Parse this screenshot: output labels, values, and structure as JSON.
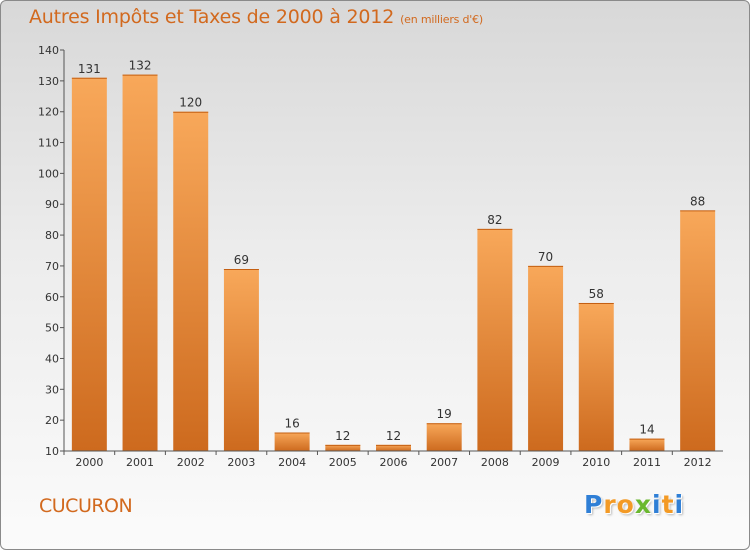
{
  "colors": {
    "accent": "#d2691e",
    "bar_top": "#f8a85a",
    "bar_bottom": "#cd6a1e",
    "axis": "#333333"
  },
  "footer": {
    "city": "CUCURON",
    "brand": "Proxiti"
  },
  "brand_letters": [
    {
      "ch": "P",
      "color": "#2f7fd6"
    },
    {
      "ch": "r",
      "color": "#f39a25"
    },
    {
      "ch": "o",
      "color": "#f39a25"
    },
    {
      "ch": "x",
      "color": "#6ab82e"
    },
    {
      "ch": "i",
      "color": "#2f7fd6"
    },
    {
      "ch": "t",
      "color": "#f39a25"
    },
    {
      "ch": "i",
      "color": "#2f7fd6"
    }
  ],
  "chart_data": {
    "type": "bar",
    "title": "Autres Impôts et Taxes de 2000 à 2012",
    "unit_label": "(en milliers d'€)",
    "categories": [
      "2000",
      "2001",
      "2002",
      "2003",
      "2004",
      "2005",
      "2006",
      "2007",
      "2008",
      "2009",
      "2010",
      "2011",
      "2012"
    ],
    "values": [
      131,
      132,
      120,
      69,
      16,
      12,
      12,
      19,
      82,
      70,
      58,
      14,
      88
    ],
    "ylim": [
      10,
      140
    ],
    "yticks": [
      10,
      20,
      30,
      40,
      50,
      60,
      70,
      80,
      90,
      100,
      110,
      120,
      130,
      140
    ],
    "xlabel": "",
    "ylabel": ""
  }
}
